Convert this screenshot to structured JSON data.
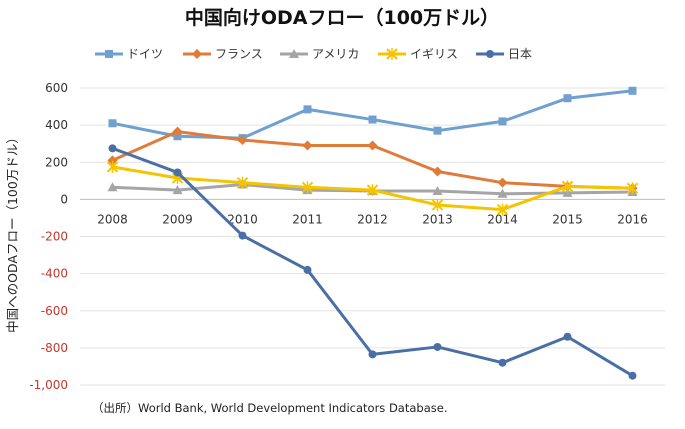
{
  "chart_data": {
    "type": "line",
    "title": "中国向けODAフロー（100万ドル）",
    "ylabel": "中国へのODAフロー（100万ドル）",
    "xlabel": "",
    "x": [
      "2008",
      "2009",
      "2010",
      "2011",
      "2012",
      "2013",
      "2014",
      "2015",
      "2016"
    ],
    "ylim": [
      -1000,
      600
    ],
    "yticks": [
      "600",
      "400",
      "200",
      "0",
      "-200",
      "-400",
      "-600",
      "-800",
      "-1,000"
    ],
    "grid": true,
    "legend_position": "top",
    "series": [
      {
        "name": "ドイツ",
        "color": "#6fa0cf",
        "marker": "square",
        "values": [
          410,
          340,
          330,
          485,
          430,
          370,
          420,
          545,
          585
        ]
      },
      {
        "name": "フランス",
        "color": "#e07b39",
        "marker": "diamond",
        "values": [
          210,
          365,
          320,
          290,
          290,
          150,
          90,
          70,
          60
        ]
      },
      {
        "name": "アメリカ",
        "color": "#a5a5a5",
        "marker": "triangle",
        "values": [
          65,
          50,
          80,
          50,
          45,
          45,
          30,
          35,
          40
        ]
      },
      {
        "name": "イギリス",
        "color": "#f5c400",
        "marker": "x",
        "values": [
          175,
          115,
          90,
          65,
          50,
          -30,
          -55,
          70,
          60
        ]
      },
      {
        "name": "日本",
        "color": "#4a6fa5",
        "marker": "circle",
        "values": [
          275,
          145,
          -195,
          -380,
          -835,
          -795,
          -880,
          -740,
          -950
        ]
      }
    ]
  },
  "source": "（出所）World Bank, World Development Indicators Database."
}
